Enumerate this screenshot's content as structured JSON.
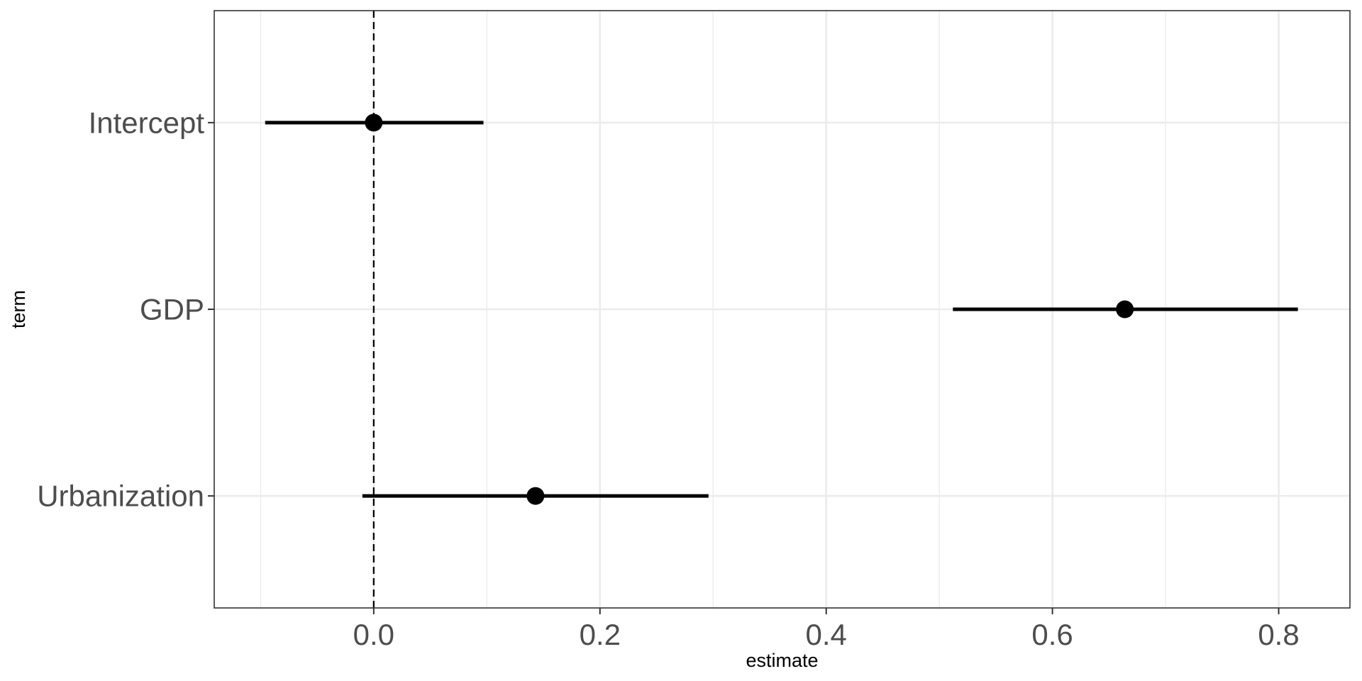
{
  "chart_data": {
    "type": "scatter",
    "subtype": "coefficient plot (point estimates with confidence intervals)",
    "title": "",
    "xlabel": "estimate",
    "ylabel": "term",
    "xlim": [
      -0.141,
      0.863
    ],
    "x_ticks": [
      0.0,
      0.2,
      0.4,
      0.6,
      0.8
    ],
    "x_tick_labels": [
      "0.0",
      "0.2",
      "0.4",
      "0.6",
      "0.8"
    ],
    "x_minor_ticks": [
      -0.1,
      0.1,
      0.3,
      0.5,
      0.7
    ],
    "categories": [
      "Intercept",
      "GDP",
      "Urbanization"
    ],
    "estimates": [
      0.0,
      0.664,
      0.143
    ],
    "conf_low": [
      -0.096,
      0.512,
      -0.01
    ],
    "conf_high": [
      0.097,
      0.817,
      0.296
    ],
    "reference_line": {
      "x": 0,
      "style": "dashed"
    },
    "grid": true,
    "legend": "none",
    "colors": {
      "point": "#000000",
      "interval": "#000000",
      "grid": "#ebebeb",
      "panel_border": "#333333",
      "tick_label": "#4d4d4d"
    }
  }
}
